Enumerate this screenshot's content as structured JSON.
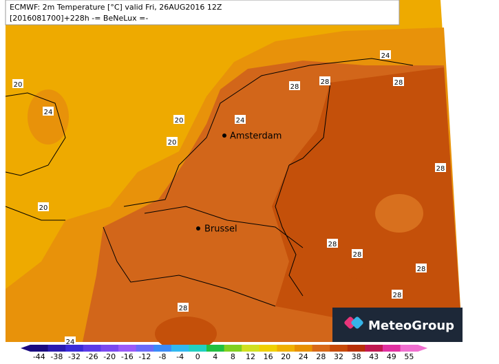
{
  "header": {
    "line1": "ECMWF: 2m Temperature [°C] valid Fri, 26AUG2016 12Z",
    "line2": "[2016081700]+228h -= BeNeLux =-"
  },
  "cities": [
    "Amsterdam",
    "Brussel"
  ],
  "contour_labels": [
    20,
    24,
    20,
    20,
    24,
    28,
    28,
    24,
    28,
    28,
    20,
    28,
    28,
    28,
    28,
    28,
    24
  ],
  "colorbar": {
    "labels": [
      -44,
      -38,
      -32,
      -26,
      -20,
      -16,
      -12,
      -8,
      -4,
      0,
      4,
      8,
      12,
      16,
      20,
      24,
      28,
      32,
      38,
      43,
      49,
      55
    ],
    "colors": [
      "#1a0a80",
      "#2a1ab0",
      "#3a2ad8",
      "#5a3ae8",
      "#7a48f0",
      "#9a5af8",
      "#6a6af8",
      "#3a8af8",
      "#30b8f0",
      "#20d0c0",
      "#20c040",
      "#80d020",
      "#d0e020",
      "#f0d000",
      "#f0b000",
      "#e89000",
      "#d86818",
      "#c84a08",
      "#b83008",
      "#c01850",
      "#e030a0",
      "#f070d0"
    ]
  },
  "logo": "MeteoGroup"
}
